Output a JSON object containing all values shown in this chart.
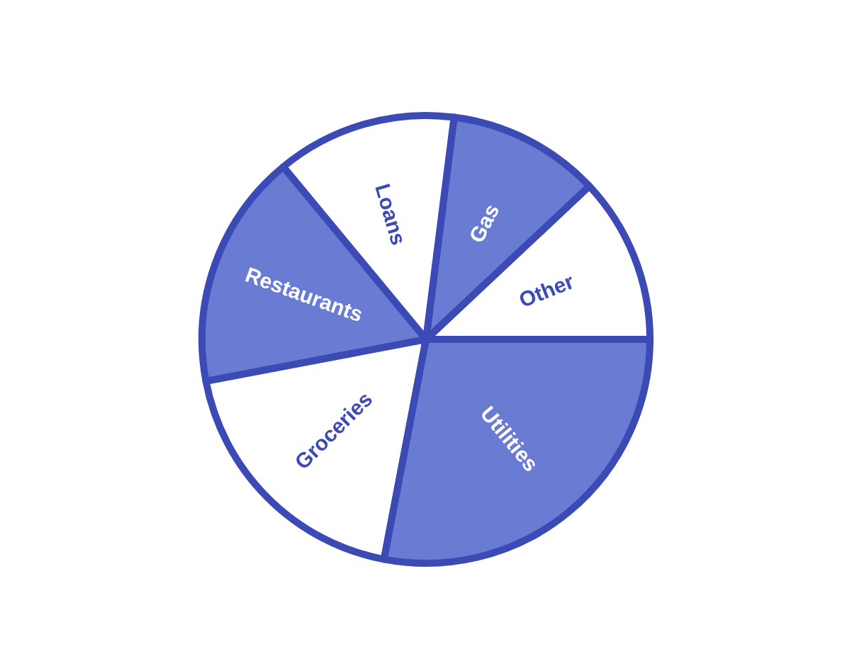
{
  "chart_data": {
    "type": "pie",
    "categories": [
      "Other",
      "Gas",
      "Loans",
      "Restaurants",
      "Groceries",
      "Utilities"
    ],
    "values": [
      12,
      11,
      13,
      17,
      19,
      28
    ],
    "colors": [
      "#ffffff",
      "#6a7bd4",
      "#ffffff",
      "#6a7bd4",
      "#ffffff",
      "#6a7bd4"
    ]
  }
}
